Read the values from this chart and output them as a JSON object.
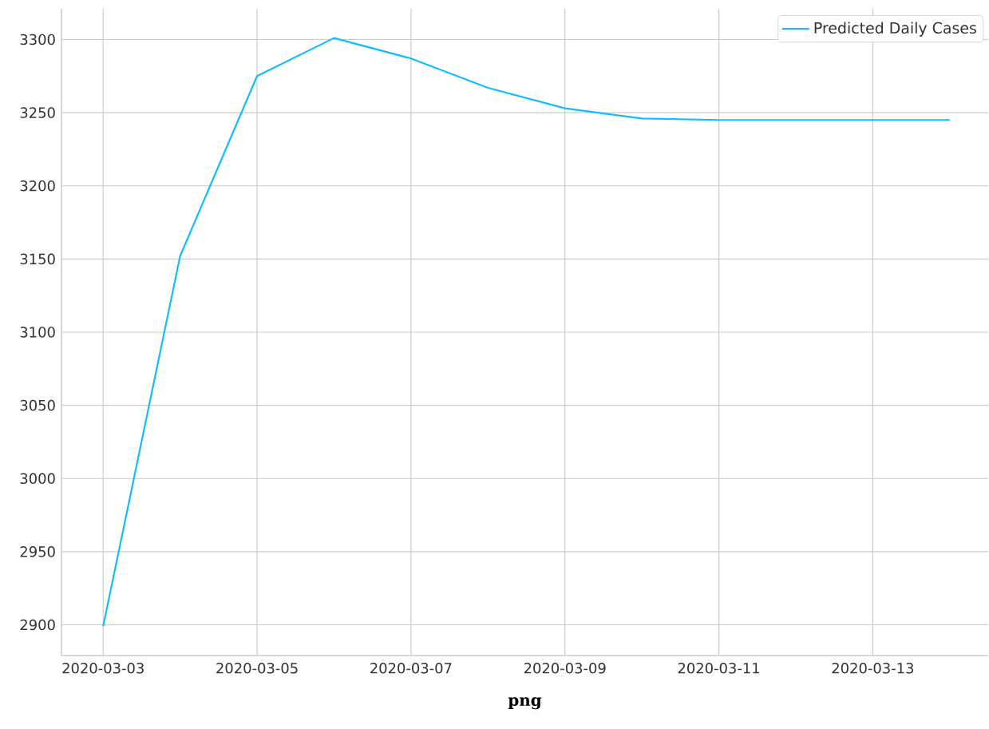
{
  "chart_data": {
    "type": "line",
    "xlabel": "png",
    "x": [
      "2020-03-03",
      "2020-03-04",
      "2020-03-05",
      "2020-03-06",
      "2020-03-07",
      "2020-03-08",
      "2020-03-09",
      "2020-03-10",
      "2020-03-11",
      "2020-03-12",
      "2020-03-13",
      "2020-03-14"
    ],
    "series": [
      {
        "name": "Predicted Daily Cases",
        "color": "#12bdfa",
        "values": [
          2899,
          3152,
          3275,
          3301,
          3287,
          3267,
          3253,
          3246,
          3245,
          3245,
          3245,
          3245
        ]
      }
    ],
    "xlim": [
      "2020-03-02T11:00",
      "2020-03-14T12:00"
    ],
    "ylim": [
      2879,
      3321
    ],
    "xticks": [
      "2020-03-03",
      "2020-03-05",
      "2020-03-07",
      "2020-03-09",
      "2020-03-11",
      "2020-03-13"
    ],
    "yticks": [
      2900,
      2950,
      3000,
      3050,
      3100,
      3150,
      3200,
      3250,
      3300
    ],
    "grid": true,
    "legend": "top right",
    "marker": "none",
    "line_style": "solid"
  }
}
